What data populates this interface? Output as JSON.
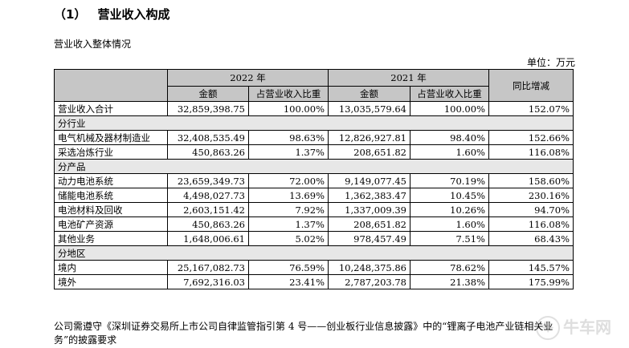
{
  "section_heading": {
    "number": "（1）",
    "title": "营业收入构成"
  },
  "subtitle": "营业收入整体情况",
  "unit": "单位：万元",
  "table": {
    "year_2022": "2022 年",
    "year_2021": "2021 年",
    "yoy_header": "同比增减",
    "col_amount": "金额",
    "col_share": "占营业收入比重",
    "rows": [
      {
        "type": "data",
        "label": "营业收入合计",
        "a2022": "32,859,398.75",
        "s2022": "100.00%",
        "a2021": "13,035,579.64",
        "s2021": "100.00%",
        "yoy": "152.07%"
      },
      {
        "type": "section",
        "label": "分行业"
      },
      {
        "type": "data",
        "label": "电气机械及器材制造业",
        "a2022": "32,408,535.49",
        "s2022": "98.63%",
        "a2021": "12,826,927.81",
        "s2021": "98.40%",
        "yoy": "152.66%"
      },
      {
        "type": "data",
        "label": "采选冶炼行业",
        "a2022": "450,863.26",
        "s2022": "1.37%",
        "a2021": "208,651.82",
        "s2021": "1.60%",
        "yoy": "116.08%"
      },
      {
        "type": "section",
        "label": "分产品"
      },
      {
        "type": "data",
        "label": "动力电池系统",
        "a2022": "23,659,349.73",
        "s2022": "72.00%",
        "a2021": "9,149,077.45",
        "s2021": "70.19%",
        "yoy": "158.60%"
      },
      {
        "type": "data",
        "label": "储能电池系统",
        "a2022": "4,498,027.73",
        "s2022": "13.69%",
        "a2021": "1,362,383.47",
        "s2021": "10.45%",
        "yoy": "230.16%"
      },
      {
        "type": "data",
        "label": "电池材料及回收",
        "a2022": "2,603,151.42",
        "s2022": "7.92%",
        "a2021": "1,337,009.39",
        "s2021": "10.26%",
        "yoy": "94.70%"
      },
      {
        "type": "data",
        "label": "电池矿产资源",
        "a2022": "450,863.26",
        "s2022": "1.37%",
        "a2021": "208,651.82",
        "s2021": "1.60%",
        "yoy": "116.08%"
      },
      {
        "type": "data",
        "label": "其他业务",
        "a2022": "1,648,006.61",
        "s2022": "5.02%",
        "a2021": "978,457.49",
        "s2021": "7.51%",
        "yoy": "68.43%"
      },
      {
        "type": "section",
        "label": "分地区"
      },
      {
        "type": "data",
        "label": "境内",
        "a2022": "25,167,082.73",
        "s2022": "76.59%",
        "a2021": "10,248,375.86",
        "s2021": "78.62%",
        "yoy": "145.57%"
      },
      {
        "type": "data",
        "label": "境外",
        "a2022": "7,692,316.03",
        "s2022": "23.41%",
        "a2021": "2,787,203.78",
        "s2021": "21.38%",
        "yoy": "175.99%"
      }
    ]
  },
  "footer": "公司需遵守《深圳证券交易所上市公司自律监管指引第 4 号——创业板行业信息披露》中的“锂离子电池产业链相关业务”的披露要求",
  "watermark": {
    "logo": "牛",
    "text": "牛车网"
  }
}
